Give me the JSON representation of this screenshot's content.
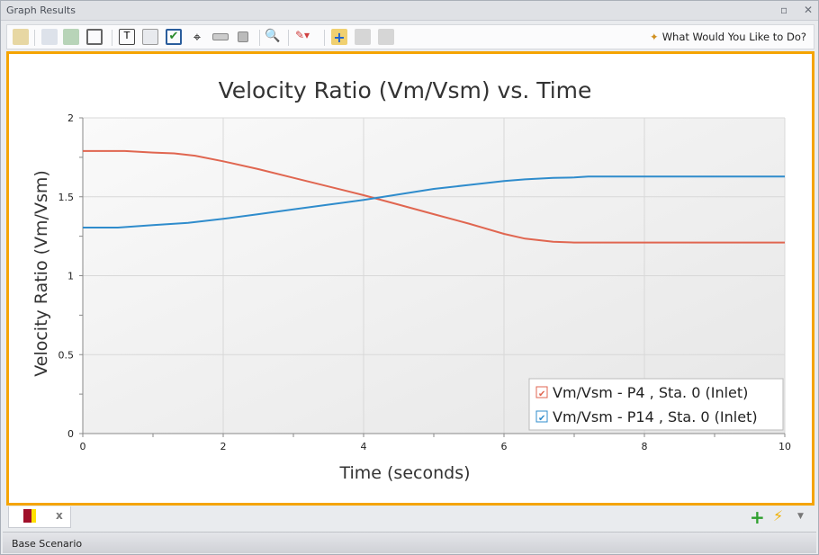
{
  "window": {
    "title": "Graph Results"
  },
  "toolbar": {
    "help_label": "What Would You Like to Do?",
    "icons": [
      "edit-graph-icon",
      "copy-icon",
      "export-icon",
      "table-icon",
      "add-text-icon",
      "legend-icon",
      "checkbox-icon",
      "crosshair-icon",
      "slider-icon",
      "stop-icon",
      "zoom-icon",
      "line-style-icon",
      "add-folder-icon",
      "disabled-check-icon",
      "disabled-alert-icon"
    ]
  },
  "tabs": {
    "close_label": "x"
  },
  "status": {
    "scenario": "Base Scenario"
  },
  "chart_data": {
    "type": "line",
    "title": "Velocity Ratio (Vm/Vsm) vs. Time",
    "xlabel": "Time (seconds)",
    "ylabel": "Velocity Ratio (Vm/Vsm)",
    "xlim": [
      0,
      10
    ],
    "ylim": [
      0,
      2
    ],
    "xticks": [
      "0",
      "2",
      "4",
      "6",
      "8",
      "10"
    ],
    "yticks": [
      "0",
      "0.5",
      "1",
      "1.5",
      "2"
    ],
    "grid": true,
    "legend": "bottom-right",
    "series": [
      {
        "name": "Vm/Vsm - P4 , Sta. 0 (Inlet)",
        "color": "#e06650",
        "x": [
          0,
          0.6,
          1,
          1.3,
          1.6,
          2,
          2.5,
          3,
          3.5,
          4,
          4.5,
          5,
          5.5,
          6,
          6.3,
          6.7,
          7,
          8,
          9,
          10
        ],
        "y": [
          1.79,
          1.79,
          1.78,
          1.775,
          1.76,
          1.725,
          1.675,
          1.62,
          1.565,
          1.51,
          1.45,
          1.39,
          1.33,
          1.265,
          1.235,
          1.215,
          1.21,
          1.21,
          1.21,
          1.21
        ]
      },
      {
        "name": "Vm/Vsm - P14 , Sta. 0 (Inlet)",
        "color": "#2f8ccc",
        "x": [
          0,
          0.5,
          1,
          1.5,
          2,
          2.5,
          3,
          3.5,
          4,
          4.5,
          5,
          5.5,
          6,
          6.3,
          6.7,
          7,
          7.2,
          8,
          9,
          10
        ],
        "y": [
          1.305,
          1.305,
          1.32,
          1.335,
          1.36,
          1.39,
          1.42,
          1.45,
          1.48,
          1.515,
          1.55,
          1.575,
          1.6,
          1.61,
          1.62,
          1.622,
          1.628,
          1.628,
          1.628,
          1.628
        ]
      }
    ]
  }
}
